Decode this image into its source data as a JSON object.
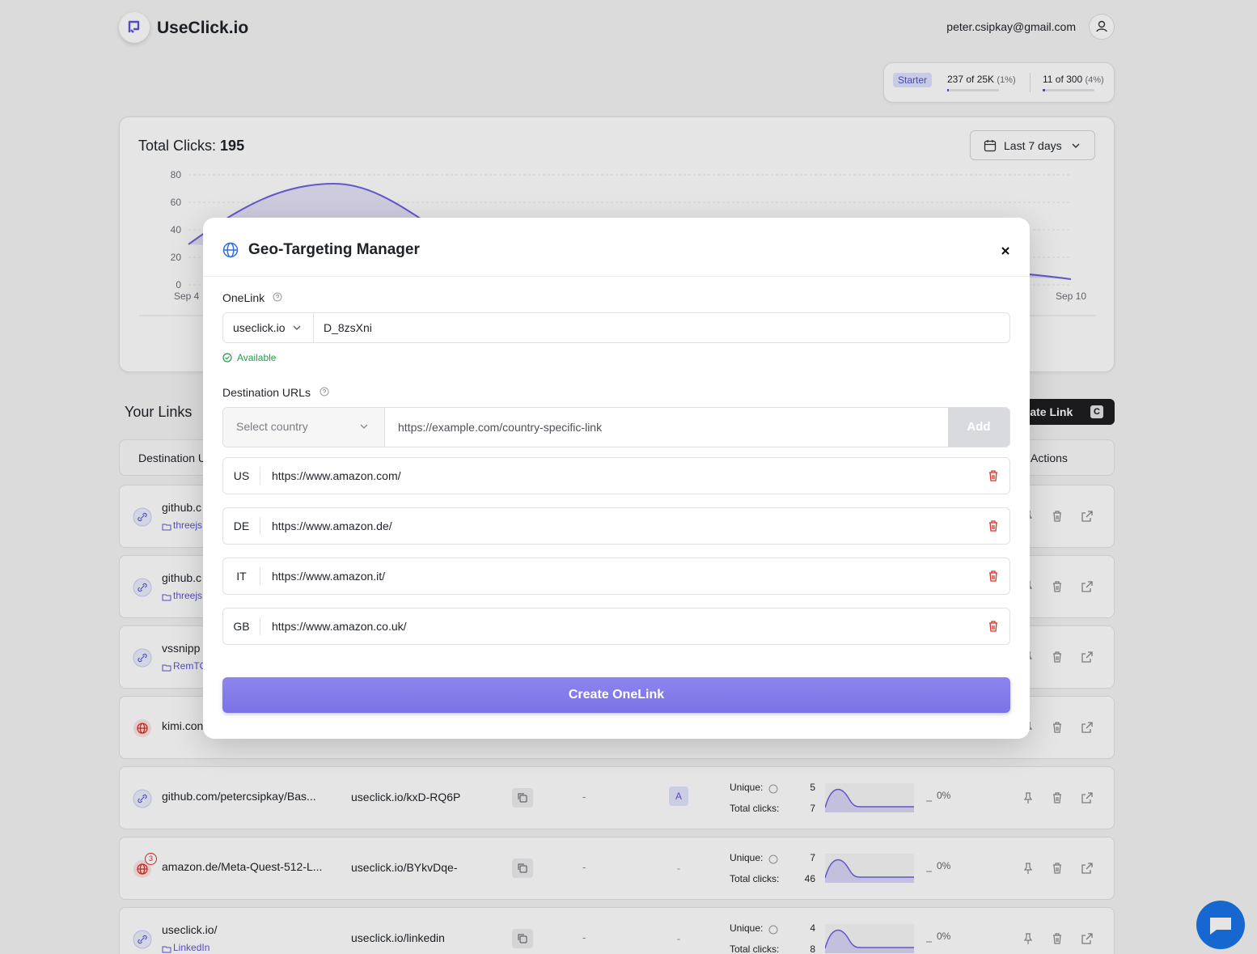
{
  "header": {
    "brand": "UseClick.io",
    "email": "peter.csipkay@gmail.com"
  },
  "usage": {
    "plan": "Starter",
    "clicks": "237 of 25K",
    "clicks_pct": "(1%)",
    "links": "11 of 300",
    "links_pct": "(4%)"
  },
  "overview": {
    "title": "Total Clicks:",
    "total": "195",
    "range": "Last 7 days",
    "yticks": [
      "80",
      "60",
      "40",
      "20",
      "0"
    ],
    "xlabels": [
      "Sep 4",
      "Sep 10"
    ]
  },
  "links": {
    "title": "Your Links",
    "create": "Create Link",
    "shortcut": "C",
    "columns": [
      "Destination U",
      "Actions"
    ],
    "unique_label": "Unique:",
    "total_label": "Total clicks:",
    "rows": [
      {
        "destination": "github.c",
        "folder": "threejs"
      },
      {
        "destination": "github.c",
        "folder": "threejs"
      },
      {
        "destination": "vssnipp",
        "folder": "RemTC"
      },
      {
        "destination": "kimi.con"
      },
      {
        "destination": "github.com/petercsipkay/Bas...",
        "short": "useclick.io/kxD-RQ6P",
        "date": "-",
        "badge": "A",
        "unique": "5",
        "total": "7",
        "change": "0%"
      },
      {
        "destination": "amazon.de/Meta-Quest-512-L...",
        "geo_count": "3",
        "short": "useclick.io/BYkvDqe-",
        "date": "-",
        "badge": "-",
        "unique": "7",
        "total": "46",
        "change": "0%"
      },
      {
        "destination": "useclick.io/",
        "folder": "LinkedIn",
        "short": "useclick.io/linkedin",
        "date": "-",
        "badge": "-",
        "unique": "4",
        "total": "8",
        "change": "0%"
      }
    ]
  },
  "modal": {
    "title": "Geo-Targeting Manager",
    "onelink_label": "OneLink",
    "domain": "useclick.io",
    "slug": "D_8zsXni",
    "status": "Available",
    "destinations_label": "Destination URLs",
    "country_placeholder": "Select country",
    "url_placeholder": "https://example.com/country-specific-link",
    "add": "Add",
    "entries": [
      {
        "country": "US",
        "url": "https://www.amazon.com/"
      },
      {
        "country": "DE",
        "url": "https://www.amazon.de/"
      },
      {
        "country": "IT",
        "url": "https://www.amazon.it/"
      },
      {
        "country": "GB",
        "url": "https://www.amazon.co.uk/"
      }
    ],
    "submit": "Create OneLink"
  }
}
